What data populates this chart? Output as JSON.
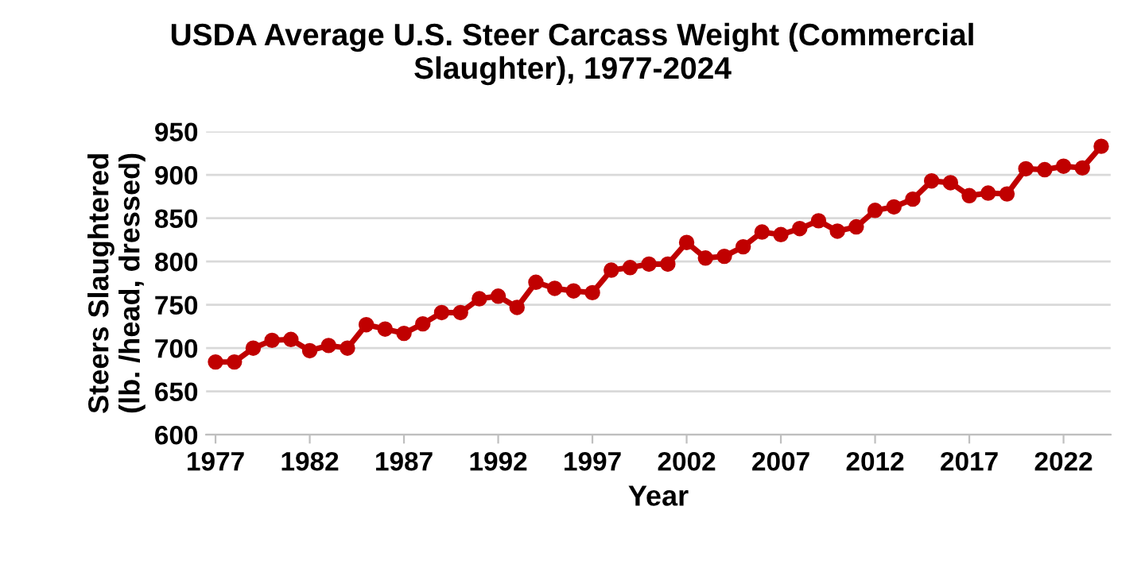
{
  "chart_data": {
    "type": "line",
    "title": "USDA Average U.S. Steer Carcass Weight (Commercial Slaughter), 1977-2024",
    "xlabel": "Year",
    "ylabel": "Steers Slaughtered (lb. /head, dressed)",
    "x": [
      1977,
      1978,
      1979,
      1980,
      1981,
      1982,
      1983,
      1984,
      1985,
      1986,
      1987,
      1988,
      1989,
      1990,
      1991,
      1992,
      1993,
      1994,
      1995,
      1996,
      1997,
      1998,
      1999,
      2000,
      2001,
      2002,
      2003,
      2004,
      2005,
      2006,
      2007,
      2008,
      2009,
      2010,
      2011,
      2012,
      2013,
      2014,
      2015,
      2016,
      2017,
      2018,
      2019,
      2020,
      2021,
      2022,
      2023,
      2024
    ],
    "series": [
      {
        "color": "#c00000",
        "values": [
          684,
          684,
          700,
          709,
          710,
          697,
          703,
          700,
          727,
          722,
          717,
          728,
          741,
          741,
          757,
          760,
          747,
          776,
          769,
          766,
          764,
          790,
          793,
          797,
          797,
          822,
          804,
          806,
          817,
          834,
          831,
          838,
          847,
          835,
          840,
          859,
          863,
          872,
          893,
          891,
          876,
          879,
          878,
          907,
          906,
          910,
          908,
          933
        ]
      }
    ],
    "xlim": [
      1976.5,
      2024.5
    ],
    "xticks": [
      1977,
      1982,
      1987,
      1992,
      1997,
      2002,
      2007,
      2012,
      2017,
      2022
    ],
    "ylim": [
      600,
      950
    ],
    "yticks": [
      600,
      650,
      700,
      750,
      800,
      850,
      900,
      950
    ],
    "grid": "y",
    "marker": "circle",
    "line_style": "solid",
    "legend": false
  }
}
